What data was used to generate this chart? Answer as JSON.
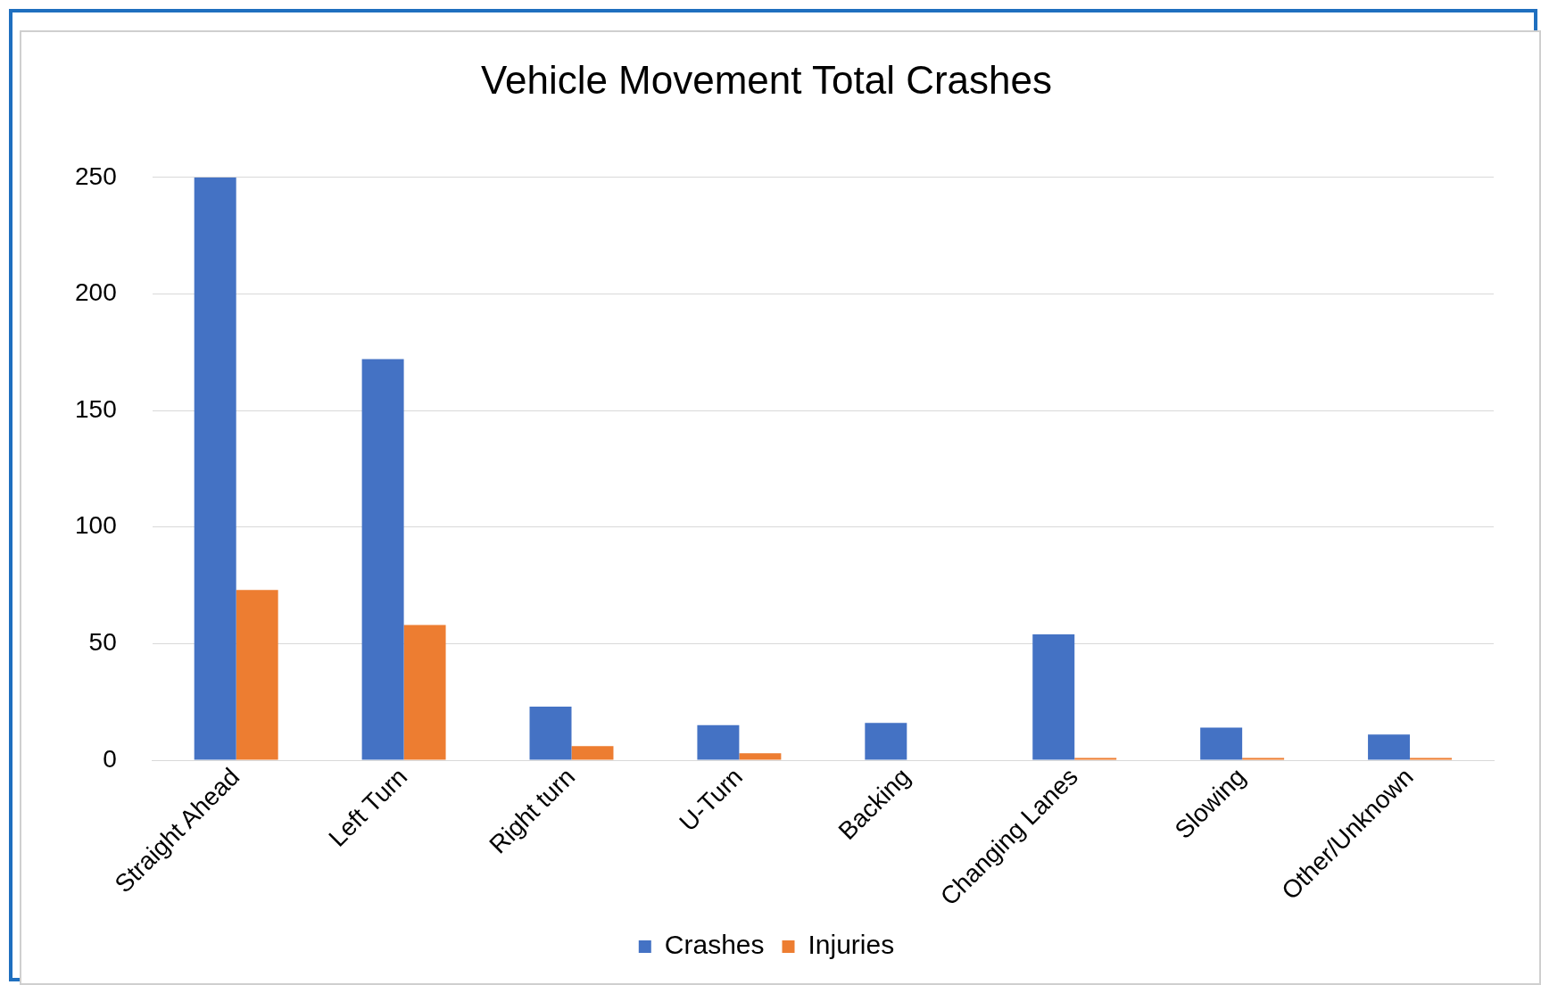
{
  "chart_data": {
    "type": "bar",
    "title": "Vehicle Movement Total Crashes",
    "categories": [
      "Straight Ahead",
      "Left Turn",
      "Right turn",
      "U-Turn",
      "Backing",
      "Changing Lanes",
      "Slowing",
      "Other/Unknown"
    ],
    "series": [
      {
        "name": "Crashes",
        "color": "#4472c4",
        "values": [
          250,
          172,
          23,
          15,
          16,
          54,
          14,
          11
        ]
      },
      {
        "name": "Injuries",
        "color": "#ed7d31",
        "values": [
          73,
          58,
          6,
          3,
          0,
          1,
          1,
          1
        ]
      }
    ],
    "ylim": [
      0,
      250
    ],
    "yticks": [
      0,
      50,
      100,
      150,
      200,
      250
    ],
    "grid": "y",
    "legend": "bottom"
  }
}
